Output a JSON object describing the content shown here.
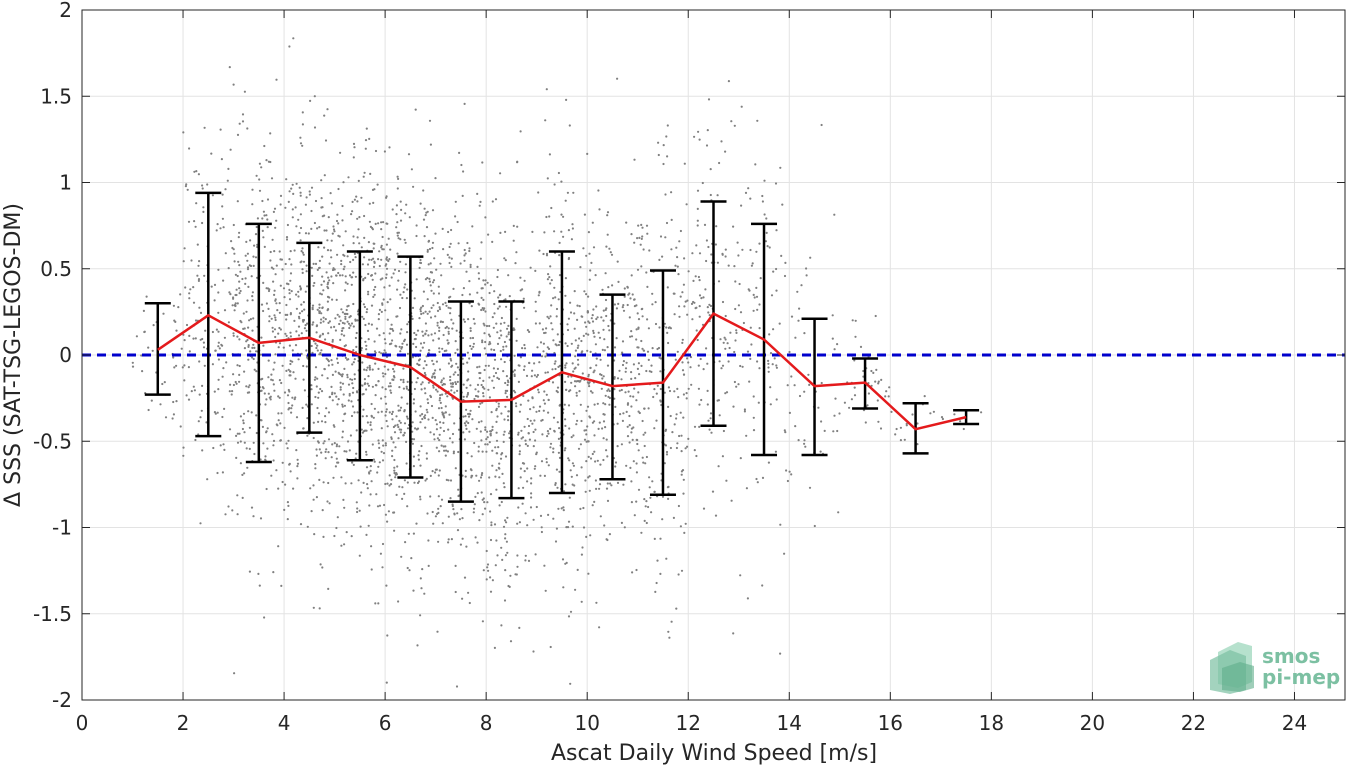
{
  "chart_data": {
    "type": "scatter",
    "title": "",
    "xlabel": "Ascat Daily Wind Speed [m/s]",
    "ylabel": "Δ SSS (SAT-TSG-LEGOS-DM)",
    "xlim": [
      0,
      25
    ],
    "ylim": [
      -2,
      2
    ],
    "xticks": [
      0,
      2,
      4,
      6,
      8,
      10,
      12,
      14,
      16,
      18,
      20,
      22,
      24
    ],
    "yticks": [
      -2,
      -1.5,
      -1,
      -0.5,
      0,
      0.5,
      1,
      1.5,
      2
    ],
    "xtick_labels": [
      "0",
      "2",
      "4",
      "6",
      "8",
      "10",
      "12",
      "14",
      "16",
      "18",
      "20",
      "22",
      "24"
    ],
    "ytick_labels": [
      "-2",
      "-1.5",
      "-1",
      "-0.5",
      "0",
      "0.5",
      "1",
      "1.5",
      "2"
    ],
    "grid": true,
    "zero_line": {
      "y": 0,
      "color": "#0000cc",
      "style": "dashed"
    },
    "binned_mean": {
      "color": "#e41a1c",
      "x": [
        1.5,
        2.5,
        3.5,
        4.5,
        5.5,
        6.5,
        7.5,
        8.5,
        9.5,
        10.5,
        11.5,
        12.5,
        13.5,
        14.5,
        15.5,
        16.5,
        17.5
      ],
      "y": [
        0.03,
        0.23,
        0.07,
        0.1,
        0.0,
        -0.07,
        -0.27,
        -0.26,
        -0.1,
        -0.18,
        -0.16,
        0.24,
        0.09,
        -0.18,
        -0.16,
        -0.43,
        -0.36
      ],
      "err_low": [
        -0.23,
        -0.47,
        -0.62,
        -0.45,
        -0.61,
        -0.71,
        -0.85,
        -0.83,
        -0.8,
        -0.72,
        -0.81,
        -0.41,
        -0.58,
        -0.58,
        -0.31,
        -0.57,
        -0.4
      ],
      "err_high": [
        0.3,
        0.94,
        0.76,
        0.65,
        0.6,
        0.57,
        0.31,
        0.31,
        0.6,
        0.35,
        0.49,
        0.89,
        0.76,
        0.21,
        -0.02,
        -0.28,
        -0.32
      ]
    },
    "scatter": {
      "color": "#808080",
      "clusters": [
        {
          "x": 1.5,
          "mean": 0.03,
          "sd": 0.25,
          "n": 40
        },
        {
          "x": 2.5,
          "mean": 0.23,
          "sd": 0.5,
          "n": 160
        },
        {
          "x": 3.5,
          "mean": 0.07,
          "sd": 0.55,
          "n": 300
        },
        {
          "x": 4.5,
          "mean": 0.1,
          "sd": 0.55,
          "n": 380
        },
        {
          "x": 5.5,
          "mean": 0.0,
          "sd": 0.55,
          "n": 420
        },
        {
          "x": 6.5,
          "mean": -0.07,
          "sd": 0.55,
          "n": 420
        },
        {
          "x": 7.5,
          "mean": -0.27,
          "sd": 0.55,
          "n": 380
        },
        {
          "x": 8.5,
          "mean": -0.26,
          "sd": 0.55,
          "n": 320
        },
        {
          "x": 9.5,
          "mean": -0.1,
          "sd": 0.6,
          "n": 300
        },
        {
          "x": 10.5,
          "mean": -0.18,
          "sd": 0.5,
          "n": 260
        },
        {
          "x": 11.5,
          "mean": -0.16,
          "sd": 0.6,
          "n": 220
        },
        {
          "x": 12.5,
          "mean": 0.24,
          "sd": 0.6,
          "n": 140
        },
        {
          "x": 13.5,
          "mean": 0.09,
          "sd": 0.6,
          "n": 100
        },
        {
          "x": 14.5,
          "mean": -0.18,
          "sd": 0.4,
          "n": 50
        },
        {
          "x": 15.5,
          "mean": -0.16,
          "sd": 0.15,
          "n": 40
        },
        {
          "x": 16.5,
          "mean": -0.43,
          "sd": 0.12,
          "n": 15
        },
        {
          "x": 17.5,
          "mean": -0.36,
          "sd": 0.05,
          "n": 6
        }
      ]
    }
  },
  "logo": {
    "line1": "smos",
    "line2": "pi-mep",
    "color": "#7cc0a2"
  }
}
